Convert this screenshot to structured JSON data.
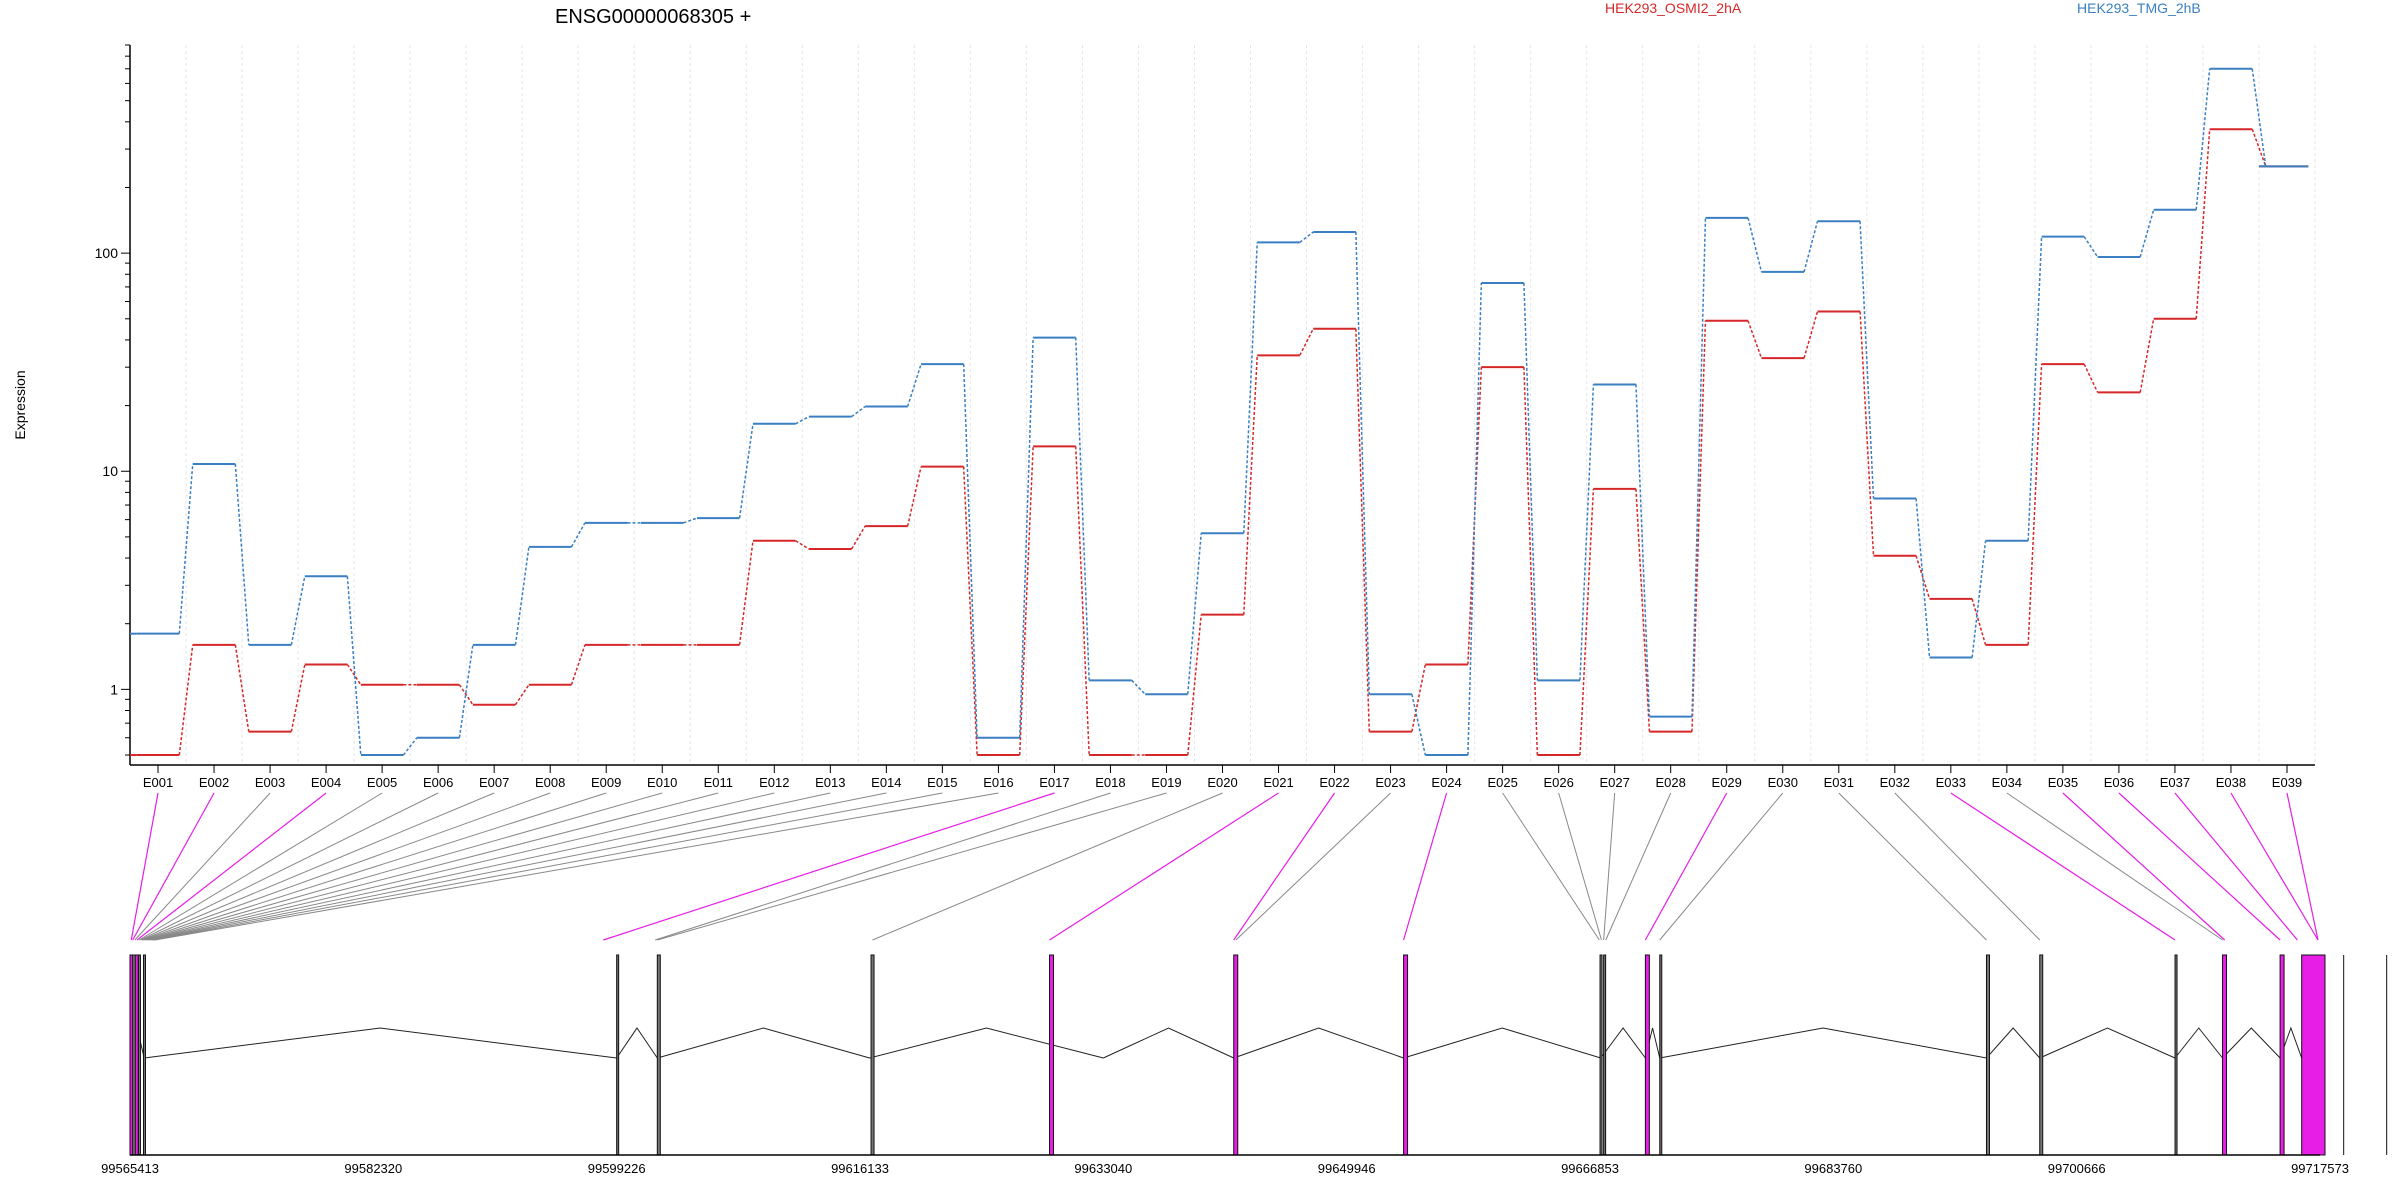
{
  "chart_data": {
    "type": "line",
    "title": "ENSG00000068305 +",
    "ylabel": "Expression",
    "xlabel": "",
    "yscale": "log",
    "ylim": [
      0.45,
      900
    ],
    "yticks": [
      1,
      10,
      100
    ],
    "yticklabels": [
      "1",
      "10",
      "100"
    ],
    "grid": "vertical dashed lines at exon boundaries",
    "legend_placement": "top",
    "categories": [
      "E001",
      "E002",
      "E003",
      "E004",
      "E005",
      "E006",
      "E007",
      "E008",
      "E009",
      "E010",
      "E011",
      "E012",
      "E013",
      "E014",
      "E015",
      "E016",
      "E017",
      "E018",
      "E019",
      "E020",
      "E021",
      "E022",
      "E023",
      "E024",
      "E025",
      "E026",
      "E027",
      "E028",
      "E029",
      "E030",
      "E031",
      "E032",
      "E033",
      "E034",
      "E035",
      "E036",
      "E037",
      "E038",
      "E039"
    ],
    "series": [
      {
        "name": "HEK293_OSMI2_2hA",
        "color": "#d62728",
        "values": [
          0.5,
          1.6,
          0.64,
          1.3,
          1.05,
          1.05,
          0.85,
          1.05,
          1.6,
          1.6,
          1.6,
          4.8,
          4.4,
          5.6,
          10.5,
          0.5,
          13,
          0.5,
          0.5,
          2.2,
          34,
          45,
          0.64,
          1.3,
          30,
          0.5,
          8.3,
          0.64,
          49,
          33,
          54,
          4.1,
          2.6,
          1.6,
          31,
          23,
          50,
          370,
          250
        ]
      },
      {
        "name": "HEK293_TMG_2hB",
        "color": "#3a7fc2",
        "values": [
          1.8,
          10.8,
          1.6,
          3.3,
          0.5,
          0.6,
          1.6,
          4.5,
          5.8,
          5.8,
          6.1,
          16.5,
          17.8,
          19.8,
          31,
          0.6,
          41,
          1.1,
          0.95,
          5.2,
          112,
          125,
          0.95,
          0.5,
          73,
          1.1,
          25,
          0.75,
          145,
          82,
          140,
          7.5,
          1.4,
          4.8,
          119,
          96,
          158,
          700,
          250
        ]
      }
    ],
    "genomic_axis": {
      "tick_labels": [
        "99565413",
        "99582320",
        "99599226",
        "99616133",
        "99633040",
        "99649946",
        "99666853",
        "99683760",
        "99700666",
        "99717573"
      ],
      "tick_values": [
        99565413,
        99582320,
        99599226,
        99616133,
        99633040,
        99649946,
        99666853,
        99683760,
        99700666,
        99717573
      ]
    },
    "exon_positions": [
      {
        "id": "E001",
        "pos": 99565500,
        "hl": true
      },
      {
        "id": "E002",
        "pos": 99565600,
        "hl": true
      },
      {
        "id": "E003",
        "pos": 99565750,
        "hl": false
      },
      {
        "id": "E004",
        "pos": 99565900,
        "hl": true
      },
      {
        "id": "E005",
        "pos": 99566050,
        "hl": false
      },
      {
        "id": "E006",
        "pos": 99566150,
        "hl": false
      },
      {
        "id": "E007",
        "pos": 99566250,
        "hl": false
      },
      {
        "id": "E008",
        "pos": 99566350,
        "hl": false
      },
      {
        "id": "E009",
        "pos": 99566450,
        "hl": false
      },
      {
        "id": "E010",
        "pos": 99566550,
        "hl": false
      },
      {
        "id": "E011",
        "pos": 99566650,
        "hl": false
      },
      {
        "id": "E012",
        "pos": 99566750,
        "hl": false
      },
      {
        "id": "E013",
        "pos": 99566850,
        "hl": false
      },
      {
        "id": "E014",
        "pos": 99566950,
        "hl": false
      },
      {
        "id": "E015",
        "pos": 99567050,
        "hl": false
      },
      {
        "id": "E016",
        "pos": 99567150,
        "hl": false
      },
      {
        "id": "E017",
        "pos": 99598300,
        "hl": true
      },
      {
        "id": "E018",
        "pos": 99601900,
        "hl": false
      },
      {
        "id": "E019",
        "pos": 99602050,
        "hl": false
      },
      {
        "id": "E020",
        "pos": 99617000,
        "hl": false
      },
      {
        "id": "E021",
        "pos": 99629300,
        "hl": true
      },
      {
        "id": "E022",
        "pos": 99642100,
        "hl": true
      },
      {
        "id": "E023",
        "pos": 99642250,
        "hl": false
      },
      {
        "id": "E024",
        "pos": 99653900,
        "hl": true
      },
      {
        "id": "E025",
        "pos": 99667500,
        "hl": false
      },
      {
        "id": "E026",
        "pos": 99667650,
        "hl": false
      },
      {
        "id": "E027",
        "pos": 99667800,
        "hl": false
      },
      {
        "id": "E028",
        "pos": 99667950,
        "hl": false
      },
      {
        "id": "E029",
        "pos": 99670700,
        "hl": true
      },
      {
        "id": "E030",
        "pos": 99671700,
        "hl": false
      },
      {
        "id": "E031",
        "pos": 99694400,
        "hl": false
      },
      {
        "id": "E032",
        "pos": 99698100,
        "hl": false
      },
      {
        "id": "E033",
        "pos": 99707500,
        "hl": true
      },
      {
        "id": "E034",
        "pos": 99710800,
        "hl": false
      },
      {
        "id": "E035",
        "pos": 99710950,
        "hl": true
      },
      {
        "id": "E036",
        "pos": 99714800,
        "hl": true
      },
      {
        "id": "E037",
        "pos": 99716000,
        "hl": true
      },
      {
        "id": "E038",
        "pos": 99718100,
        "hl": true
      },
      {
        "id": "E039",
        "pos": 99721000,
        "hl": true
      }
    ],
    "colors": {
      "highlight": "#e61ee6",
      "exon": "#333333",
      "connector": "#888888"
    }
  }
}
